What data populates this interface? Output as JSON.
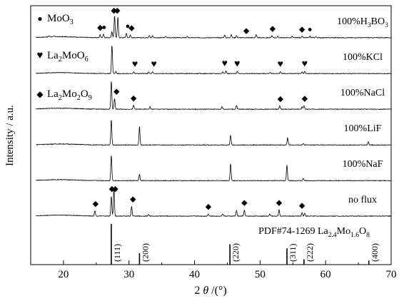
{
  "chart_data": {
    "type": "line",
    "title": "",
    "xlabel_parts": [
      "2",
      "θ",
      "/(°)"
    ],
    "ylabel": "Intensity / a.u.",
    "xlim": [
      15,
      70
    ],
    "x_ticks": [
      20,
      30,
      40,
      50,
      60,
      70
    ],
    "legend": [
      {
        "symbol": "●",
        "label_parts": [
          [
            "MoO",
            false
          ],
          [
            "3",
            true
          ]
        ]
      },
      {
        "symbol": "♥",
        "label_parts": [
          [
            "La",
            false
          ],
          [
            "2",
            true
          ],
          [
            "MoO",
            false
          ],
          [
            "6",
            true
          ]
        ]
      },
      {
        "symbol": "◆",
        "label_parts": [
          [
            "La",
            false
          ],
          [
            "2",
            true
          ],
          [
            "Mo",
            false
          ],
          [
            "2",
            true
          ],
          [
            "O",
            false
          ],
          [
            "9",
            true
          ]
        ]
      }
    ],
    "series": [
      {
        "name_parts": [
          [
            "100%H",
            false
          ],
          [
            "3",
            true
          ],
          [
            "BO",
            false
          ],
          [
            "3",
            true
          ]
        ],
        "baseline": 15,
        "peaks": [
          [
            17.8,
            4
          ],
          [
            18.6,
            3
          ],
          [
            25.6,
            11
          ],
          [
            26.1,
            12
          ],
          [
            27.4,
            22
          ],
          [
            27.8,
            78
          ],
          [
            28.3,
            72
          ],
          [
            29.6,
            16
          ],
          [
            30.2,
            10
          ],
          [
            33.1,
            8
          ],
          [
            33.6,
            7
          ],
          [
            35.6,
            5
          ],
          [
            38.9,
            4
          ],
          [
            44.6,
            9
          ],
          [
            45.6,
            10
          ],
          [
            46.4,
            7
          ],
          [
            49.4,
            10
          ],
          [
            51.8,
            7
          ],
          [
            52.7,
            4
          ],
          [
            54.9,
            5
          ],
          [
            56.4,
            5
          ],
          [
            57.6,
            5
          ],
          [
            58.5,
            4
          ]
        ],
        "markers": [
          {
            "x": 25.6,
            "symbol": "◆"
          },
          {
            "x": 26.2,
            "symbol": "●"
          },
          {
            "x": 27.7,
            "symbol": "◆"
          },
          {
            "x": 28.2,
            "symbol": "◆"
          },
          {
            "x": 29.8,
            "symbol": "●"
          },
          {
            "x": 30.4,
            "symbol": "◆"
          },
          {
            "x": 47.9,
            "symbol": "◆"
          },
          {
            "x": 51.9,
            "symbol": "◆"
          },
          {
            "x": 56.4,
            "symbol": "◆"
          },
          {
            "x": 57.6,
            "symbol": "●"
          }
        ]
      },
      {
        "name_parts": [
          [
            "100%KCl",
            false
          ]
        ],
        "baseline": 8,
        "peaks": [
          [
            27.4,
            100
          ],
          [
            28.0,
            8
          ],
          [
            30.7,
            7
          ],
          [
            33.0,
            5
          ],
          [
            33.6,
            6
          ],
          [
            44.3,
            7
          ],
          [
            44.8,
            9
          ],
          [
            46.5,
            8
          ],
          [
            51.5,
            4
          ],
          [
            53.1,
            7
          ],
          [
            56.4,
            6
          ],
          [
            56.8,
            8
          ]
        ],
        "markers": [
          {
            "x": 30.9,
            "symbol": "♥"
          },
          {
            "x": 33.8,
            "symbol": "♥"
          },
          {
            "x": 44.6,
            "symbol": "♥"
          },
          {
            "x": 46.5,
            "symbol": "♥"
          },
          {
            "x": 53.1,
            "symbol": "♥"
          },
          {
            "x": 56.8,
            "symbol": "♥"
          }
        ]
      },
      {
        "name_parts": [
          [
            "100%NaCl",
            false
          ]
        ],
        "baseline": 10,
        "peaks": [
          [
            27.3,
            100
          ],
          [
            27.8,
            38
          ],
          [
            30.7,
            14
          ],
          [
            33.2,
            8
          ],
          [
            44.2,
            9
          ],
          [
            46.4,
            13
          ],
          [
            53.0,
            11
          ],
          [
            56.4,
            8
          ],
          [
            56.7,
            12
          ]
        ],
        "markers": [
          {
            "x": 28.1,
            "symbol": "◆"
          },
          {
            "x": 30.7,
            "symbol": "◆"
          },
          {
            "x": 53.1,
            "symbol": "◆"
          },
          {
            "x": 56.8,
            "symbol": "◆"
          }
        ]
      },
      {
        "name_parts": [
          [
            "100%LiF",
            false
          ]
        ],
        "baseline": 6,
        "peaks": [
          [
            27.3,
            90
          ],
          [
            31.6,
            65
          ],
          [
            45.5,
            35
          ],
          [
            54.2,
            25
          ],
          [
            56.6,
            5
          ],
          [
            66.5,
            12
          ]
        ],
        "markers": []
      },
      {
        "name_parts": [
          [
            "100%NaF",
            false
          ]
        ],
        "baseline": 6,
        "peaks": [
          [
            27.3,
            90
          ],
          [
            31.6,
            22
          ],
          [
            45.5,
            60
          ],
          [
            54.1,
            55
          ],
          [
            56.6,
            8
          ]
        ],
        "markers": []
      },
      {
        "name_parts": [
          [
            "no flux",
            false
          ]
        ],
        "baseline": 12,
        "peaks": [
          [
            24.8,
            18
          ],
          [
            27.3,
            70
          ],
          [
            27.7,
            95
          ],
          [
            30.4,
            35
          ],
          [
            33.0,
            6
          ],
          [
            42.1,
            8
          ],
          [
            44.3,
            8
          ],
          [
            46.4,
            20
          ],
          [
            47.6,
            22
          ],
          [
            51.5,
            7
          ],
          [
            52.9,
            22
          ],
          [
            56.4,
            12
          ],
          [
            56.8,
            10
          ]
        ],
        "markers": [
          {
            "x": 24.9,
            "symbol": "◆"
          },
          {
            "x": 27.4,
            "symbol": "◆"
          },
          {
            "x": 27.9,
            "symbol": "◆"
          },
          {
            "x": 30.6,
            "symbol": "◆"
          },
          {
            "x": 42.1,
            "symbol": "◆"
          },
          {
            "x": 47.6,
            "symbol": "◆"
          },
          {
            "x": 52.9,
            "symbol": "◆"
          },
          {
            "x": 56.4,
            "symbol": "◆"
          }
        ]
      }
    ],
    "reference": {
      "label_parts": [
        [
          "PDF#74-1269 La",
          false
        ],
        [
          "2.4",
          true
        ],
        [
          "Mo",
          false
        ],
        [
          "1.6",
          true
        ],
        [
          "O",
          false
        ],
        [
          "8",
          true
        ]
      ],
      "lines": [
        {
          "x": 27.3,
          "h": 1.0,
          "hkl": "(111)"
        },
        {
          "x": 31.6,
          "h": 0.28,
          "hkl": "(200)"
        },
        {
          "x": 45.4,
          "h": 0.5,
          "hkl": "(220)"
        },
        {
          "x": 54.1,
          "h": 0.4,
          "hkl": "(311)"
        },
        {
          "x": 56.7,
          "h": 0.13,
          "hkl": "(222)"
        },
        {
          "x": 66.6,
          "h": 0.1,
          "hkl": "(400)"
        }
      ]
    }
  }
}
